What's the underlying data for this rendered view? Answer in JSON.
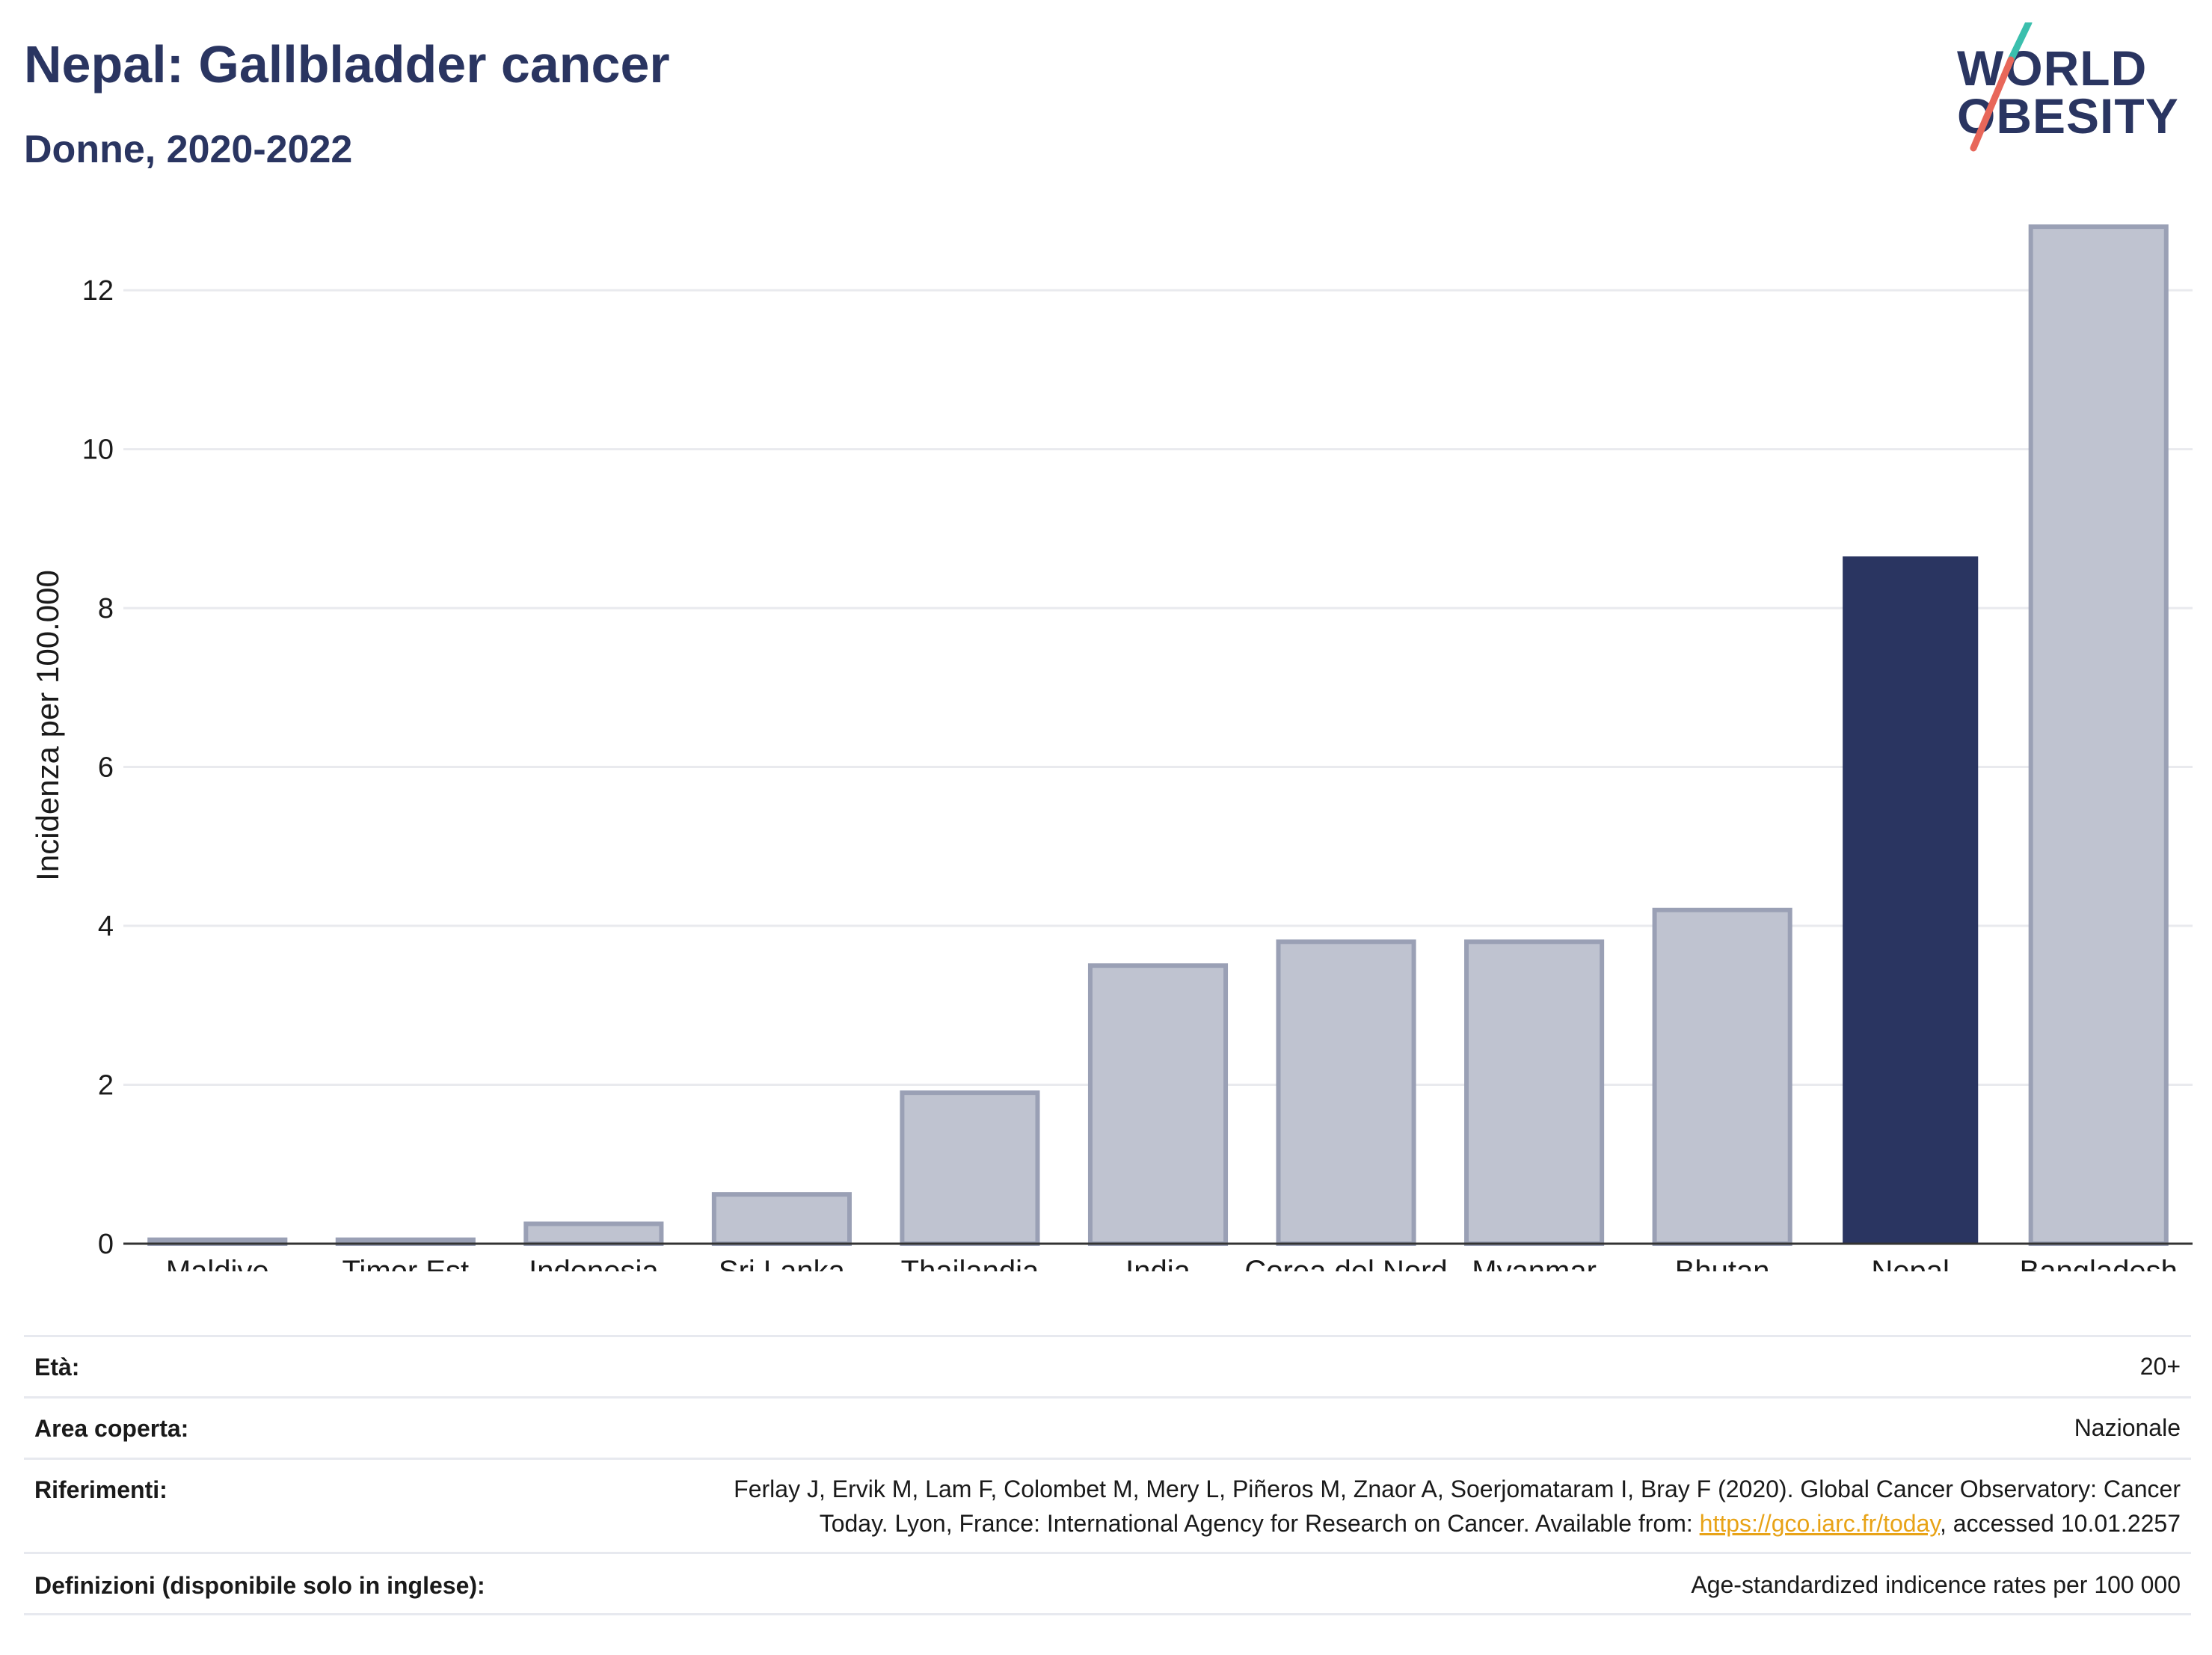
{
  "header": {
    "title": "Nepal: Gallbladder cancer",
    "subtitle": "Donne, 2020-2022"
  },
  "logo": {
    "line1": "WORLD",
    "line2": "OBESITY",
    "slash_colors": [
      "#3bbfad",
      "#e8675a"
    ]
  },
  "colors": {
    "highlight": "#2a3561",
    "others_fill": "#bfc3d0",
    "others_stroke": "#9aa0b5",
    "grid": "#e9eaee",
    "axis": "#333333"
  },
  "chart_data": {
    "type": "bar",
    "categories": [
      "Maldive",
      "Timor Est",
      "Indonesia",
      "Sri Lanka",
      "Thailandia",
      "India",
      "Corea del Nord",
      "Myanmar",
      "Bhutan",
      "Nepal",
      "Bangladesh"
    ],
    "values": [
      0.05,
      0.05,
      0.25,
      0.62,
      1.9,
      3.5,
      3.8,
      3.8,
      4.2,
      8.65,
      12.8
    ],
    "highlight": "Nepal",
    "ylabel": "Incidenza per 100.000",
    "xlabel": "",
    "ylim": [
      0,
      13.3
    ],
    "yticks": [
      0,
      2,
      4,
      6,
      8,
      10,
      12
    ],
    "grid": true
  },
  "meta": {
    "age_label": "Età:",
    "age_value": "20+",
    "area_label": "Area coperta:",
    "area_value": "Nazionale",
    "ref_label": "Riferimenti:",
    "ref_line1": "Ferlay J, Ervik M, Lam F, Colombet M, Mery L, Piñeros M, Znaor A, Soerjomataram I, Bray F (2020). Global Cancer Observatory: Cancer",
    "ref_line2_pre": "Today. Lyon, France: International Agency for Research on Cancer. Available from: ",
    "ref_link": "https://gco.iarc.fr/today",
    "ref_line2_post": ", accessed 10.01.2257",
    "def_label": "Definizioni (disponibile solo in inglese):",
    "def_value": "Age-standardized indicence rates per 100 000"
  }
}
